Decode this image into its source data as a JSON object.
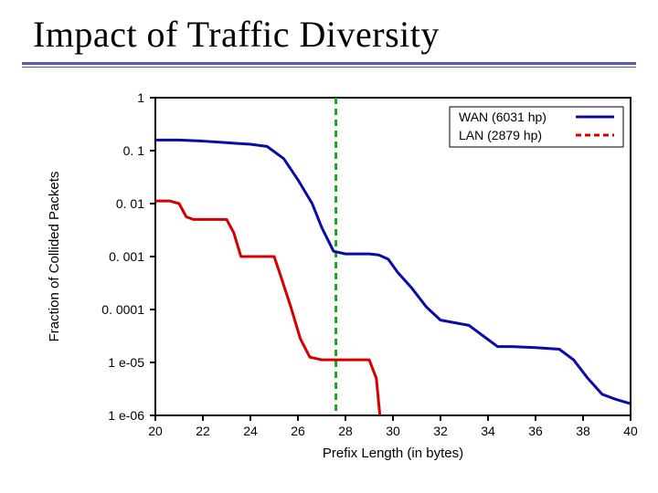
{
  "title": "Impact of Traffic Diversity",
  "title_color": "#000000",
  "title_fontsize": 40,
  "underline_color": "#5b5ba8",
  "chart": {
    "type": "line",
    "background_color": "#ffffff",
    "border_color": "#000000",
    "border_width": 2,
    "xlabel": "Prefix Length (in bytes)",
    "ylabel": "Fraction of Collided Packets",
    "label_fontsize": 15,
    "label_color": "#000000",
    "tick_fontsize": 14,
    "tick_color": "#000000",
    "x": {
      "min": 20,
      "max": 40,
      "ticks": [
        20,
        22,
        24,
        26,
        28,
        30,
        32,
        34,
        36,
        38,
        40
      ],
      "tick_labels": [
        "20",
        "22",
        "24",
        "26",
        "28",
        "30",
        "32",
        "34",
        "36",
        "38",
        "40"
      ],
      "scale": "linear"
    },
    "y": {
      "min_exp": -6,
      "max_exp": 0,
      "ticks_exp": [
        -6,
        -5,
        -4,
        -3,
        -2,
        -1,
        0
      ],
      "tick_labels": [
        "1 e-06",
        "1 e-05",
        "0. 0001",
        "0. 001",
        "0. 01",
        "0. 1",
        "1"
      ],
      "scale": "log"
    },
    "legend": {
      "entries": [
        {
          "label": "WAN (6031 hp)",
          "series": "wan"
        },
        {
          "label": "LAN (2879 hp)",
          "series": "lan"
        }
      ],
      "fontsize": 14,
      "position": "top-right",
      "box_border": "#000000"
    },
    "vertical_marker": {
      "x": 27.6,
      "color": "#16a820",
      "width": 3,
      "dash": "7,5"
    },
    "series": {
      "wan": {
        "color": "#0a0aa8",
        "width": 3,
        "dash": null,
        "points": [
          [
            20.0,
            -0.8
          ],
          [
            21.0,
            -0.8
          ],
          [
            22.0,
            -0.82
          ],
          [
            23.0,
            -0.85
          ],
          [
            24.0,
            -0.88
          ],
          [
            24.7,
            -0.92
          ],
          [
            25.4,
            -1.15
          ],
          [
            26.0,
            -1.55
          ],
          [
            26.6,
            -2.0
          ],
          [
            27.0,
            -2.45
          ],
          [
            27.5,
            -2.9
          ],
          [
            28.0,
            -2.95
          ],
          [
            29.0,
            -2.95
          ],
          [
            29.4,
            -2.97
          ],
          [
            29.8,
            -3.05
          ],
          [
            30.2,
            -3.3
          ],
          [
            30.8,
            -3.6
          ],
          [
            31.4,
            -3.95
          ],
          [
            32.0,
            -4.2
          ],
          [
            32.6,
            -4.25
          ],
          [
            33.2,
            -4.3
          ],
          [
            33.8,
            -4.5
          ],
          [
            34.4,
            -4.7
          ],
          [
            35.0,
            -4.7
          ],
          [
            36.0,
            -4.72
          ],
          [
            37.0,
            -4.75
          ],
          [
            37.6,
            -4.95
          ],
          [
            38.2,
            -5.3
          ],
          [
            38.8,
            -5.6
          ],
          [
            39.4,
            -5.7
          ],
          [
            40.0,
            -5.78
          ]
        ]
      },
      "lan": {
        "color": "#d40000",
        "width": 3,
        "dash": null,
        "points": [
          [
            20.0,
            -1.95
          ],
          [
            20.6,
            -1.95
          ],
          [
            21.0,
            -2.0
          ],
          [
            21.3,
            -2.25
          ],
          [
            21.6,
            -2.3
          ],
          [
            22.2,
            -2.3
          ],
          [
            23.0,
            -2.3
          ],
          [
            23.3,
            -2.55
          ],
          [
            23.6,
            -3.0
          ],
          [
            24.0,
            -3.0
          ],
          [
            25.0,
            -3.0
          ],
          [
            25.3,
            -3.4
          ],
          [
            25.7,
            -3.95
          ],
          [
            26.1,
            -4.55
          ],
          [
            26.5,
            -4.9
          ],
          [
            27.0,
            -4.95
          ],
          [
            27.5,
            -4.95
          ],
          [
            28.2,
            -4.95
          ],
          [
            29.0,
            -4.95
          ],
          [
            29.3,
            -5.3
          ],
          [
            29.45,
            -6.0
          ]
        ]
      }
    }
  }
}
